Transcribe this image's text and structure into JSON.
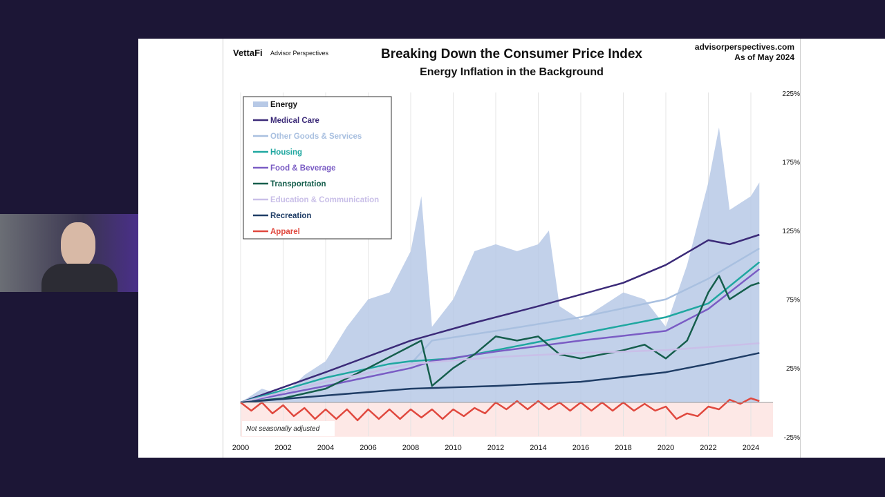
{
  "header": {
    "logo": "VettaFi",
    "logo_sub": "Advisor Perspectives",
    "site": "advisorperspectives.com",
    "as_of": "As of May 2024"
  },
  "chart_data": {
    "type": "line",
    "title": "Breaking Down the Consumer Price Index",
    "subtitle": "Energy Inflation in the Background",
    "annotation": "Not seasonally adjusted",
    "xlim": [
      2000,
      2024.4
    ],
    "ylim": [
      -25,
      225
    ],
    "x_ticks": [
      "2000",
      "2002",
      "2004",
      "2006",
      "2008",
      "2010",
      "2012",
      "2014",
      "2016",
      "2018",
      "2020",
      "2022",
      "2024"
    ],
    "y_ticks": [
      "225%",
      "175%",
      "125%",
      "75%",
      "25%",
      "-25%"
    ],
    "grid": "vertical",
    "legend_placement": "top-left",
    "series": [
      {
        "name": "Energy",
        "type": "area",
        "color": "#b7c9e6",
        "points": [
          [
            2000,
            0
          ],
          [
            2001,
            10
          ],
          [
            2002,
            5
          ],
          [
            2003,
            20
          ],
          [
            2004,
            30
          ],
          [
            2005,
            55
          ],
          [
            2006,
            75
          ],
          [
            2007,
            80
          ],
          [
            2008,
            110
          ],
          [
            2008.5,
            150
          ],
          [
            2009,
            55
          ],
          [
            2010,
            75
          ],
          [
            2011,
            110
          ],
          [
            2012,
            115
          ],
          [
            2013,
            110
          ],
          [
            2014,
            115
          ],
          [
            2014.5,
            125
          ],
          [
            2015,
            70
          ],
          [
            2016,
            60
          ],
          [
            2017,
            70
          ],
          [
            2018,
            80
          ],
          [
            2019,
            75
          ],
          [
            2020,
            55
          ],
          [
            2021,
            100
          ],
          [
            2022,
            160
          ],
          [
            2022.5,
            200
          ],
          [
            2023,
            140
          ],
          [
            2024,
            150
          ],
          [
            2024.4,
            160
          ]
        ]
      },
      {
        "name": "Medical Care",
        "color": "#3b2a78",
        "points": [
          [
            2000,
            0
          ],
          [
            2004,
            22
          ],
          [
            2008,
            45
          ],
          [
            2011,
            58
          ],
          [
            2014,
            70
          ],
          [
            2018,
            87
          ],
          [
            2020,
            100
          ],
          [
            2022,
            118
          ],
          [
            2023,
            115
          ],
          [
            2024.4,
            122
          ]
        ]
      },
      {
        "name": "Other Goods & Services",
        "color": "#a9c0e0",
        "points": [
          [
            2000,
            0
          ],
          [
            2004,
            15
          ],
          [
            2008,
            28
          ],
          [
            2009,
            45
          ],
          [
            2012,
            52
          ],
          [
            2016,
            62
          ],
          [
            2020,
            75
          ],
          [
            2022,
            90
          ],
          [
            2024.4,
            112
          ]
        ]
      },
      {
        "name": "Housing",
        "color": "#1fa7a0",
        "points": [
          [
            2000,
            0
          ],
          [
            2004,
            18
          ],
          [
            2007,
            28
          ],
          [
            2008,
            30
          ],
          [
            2010,
            32
          ],
          [
            2012,
            38
          ],
          [
            2016,
            50
          ],
          [
            2020,
            62
          ],
          [
            2022,
            72
          ],
          [
            2024.4,
            102
          ]
        ]
      },
      {
        "name": "Food & Beverage",
        "color": "#7a5cc4",
        "points": [
          [
            2000,
            0
          ],
          [
            2004,
            12
          ],
          [
            2008,
            25
          ],
          [
            2009,
            30
          ],
          [
            2012,
            37
          ],
          [
            2016,
            45
          ],
          [
            2020,
            52
          ],
          [
            2022,
            68
          ],
          [
            2024.4,
            97
          ]
        ]
      },
      {
        "name": "Transportation",
        "color": "#155e4c",
        "points": [
          [
            2000,
            0
          ],
          [
            2002,
            3
          ],
          [
            2004,
            10
          ],
          [
            2006,
            25
          ],
          [
            2008.5,
            45
          ],
          [
            2009,
            12
          ],
          [
            2010,
            25
          ],
          [
            2011,
            35
          ],
          [
            2012,
            48
          ],
          [
            2013,
            45
          ],
          [
            2014,
            48
          ],
          [
            2015,
            35
          ],
          [
            2016,
            32
          ],
          [
            2017,
            35
          ],
          [
            2018,
            38
          ],
          [
            2019,
            42
          ],
          [
            2020,
            32
          ],
          [
            2021,
            45
          ],
          [
            2022,
            80
          ],
          [
            2022.5,
            92
          ],
          [
            2023,
            75
          ],
          [
            2024,
            85
          ],
          [
            2024.4,
            87
          ]
        ]
      },
      {
        "name": "Education & Communication",
        "color": "#c9bfe8",
        "points": [
          [
            2000,
            0
          ],
          [
            2004,
            15
          ],
          [
            2008,
            28
          ],
          [
            2012,
            33
          ],
          [
            2016,
            36
          ],
          [
            2020,
            38
          ],
          [
            2024.4,
            43
          ]
        ]
      },
      {
        "name": "Recreation",
        "color": "#1f3d66",
        "points": [
          [
            2000,
            0
          ],
          [
            2004,
            5
          ],
          [
            2008,
            10
          ],
          [
            2012,
            12
          ],
          [
            2016,
            15
          ],
          [
            2020,
            22
          ],
          [
            2022,
            28
          ],
          [
            2024.4,
            36
          ]
        ]
      },
      {
        "name": "Apparel",
        "color": "#e0483e",
        "points": [
          [
            2000,
            0
          ],
          [
            2000.5,
            -6
          ],
          [
            2001,
            0
          ],
          [
            2001.5,
            -8
          ],
          [
            2002,
            -2
          ],
          [
            2002.5,
            -10
          ],
          [
            2003,
            -4
          ],
          [
            2003.5,
            -12
          ],
          [
            2004,
            -5
          ],
          [
            2004.5,
            -12
          ],
          [
            2005,
            -5
          ],
          [
            2005.5,
            -13
          ],
          [
            2006,
            -5
          ],
          [
            2006.5,
            -12
          ],
          [
            2007,
            -5
          ],
          [
            2007.5,
            -12
          ],
          [
            2008,
            -5
          ],
          [
            2008.5,
            -11
          ],
          [
            2009,
            -5
          ],
          [
            2009.5,
            -12
          ],
          [
            2010,
            -5
          ],
          [
            2010.5,
            -10
          ],
          [
            2011,
            -4
          ],
          [
            2011.5,
            -8
          ],
          [
            2012,
            0
          ],
          [
            2012.5,
            -5
          ],
          [
            2013,
            1
          ],
          [
            2013.5,
            -5
          ],
          [
            2014,
            1
          ],
          [
            2014.5,
            -5
          ],
          [
            2015,
            0
          ],
          [
            2015.5,
            -6
          ],
          [
            2016,
            0
          ],
          [
            2016.5,
            -6
          ],
          [
            2017,
            0
          ],
          [
            2017.5,
            -6
          ],
          [
            2018,
            0
          ],
          [
            2018.5,
            -6
          ],
          [
            2019,
            -1
          ],
          [
            2019.5,
            -6
          ],
          [
            2020,
            -3
          ],
          [
            2020.5,
            -12
          ],
          [
            2021,
            -8
          ],
          [
            2021.5,
            -10
          ],
          [
            2022,
            -3
          ],
          [
            2022.5,
            -5
          ],
          [
            2023,
            2
          ],
          [
            2023.5,
            -1
          ],
          [
            2024,
            3
          ],
          [
            2024.4,
            1
          ]
        ]
      }
    ]
  }
}
